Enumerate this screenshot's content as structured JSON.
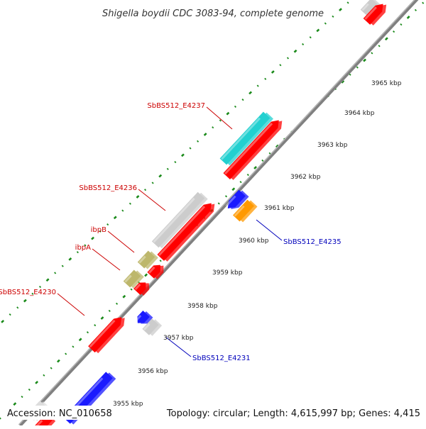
{
  "title": "Shigella boydii CDC 3083-94, complete genome",
  "accession": "Accession: NC_010658",
  "topology": "Topology: circular; Length: 4,615,997 bp; Genes: 4,415",
  "colors": {
    "background": "#ffffff",
    "backbone": "#8a8a8a",
    "guide_dots": "#1a8a1a",
    "label_red": "#cc0000",
    "label_blue": "#0000bb",
    "gene_red": "#ff0000",
    "gene_blue": "#1a1aff",
    "gene_cyan": "#22d0d0",
    "gene_orange": "#ff9900",
    "gene_olive": "#bdb76b",
    "gene_gray": "#cccccc"
  },
  "scale_ticks": [
    "3955 kbp",
    "3956 kbp",
    "3957 kbp",
    "3958 kbp",
    "3959 kbp",
    "3960 kbp",
    "3961 kbp",
    "3962 kbp",
    "3963 kbp",
    "3964 kbp",
    "3965 kbp"
  ],
  "gene_labels": [
    {
      "name": "SbBS512_E4237",
      "color": "red"
    },
    {
      "name": "SbBS512_E4236",
      "color": "red"
    },
    {
      "name": "ibpB",
      "color": "red"
    },
    {
      "name": "ibpA",
      "color": "red"
    },
    {
      "name": "SbBS512_E4230",
      "color": "red"
    },
    {
      "name": "SbBS512_E4235",
      "color": "blue"
    },
    {
      "name": "SbBS512_E4231",
      "color": "blue"
    }
  ]
}
